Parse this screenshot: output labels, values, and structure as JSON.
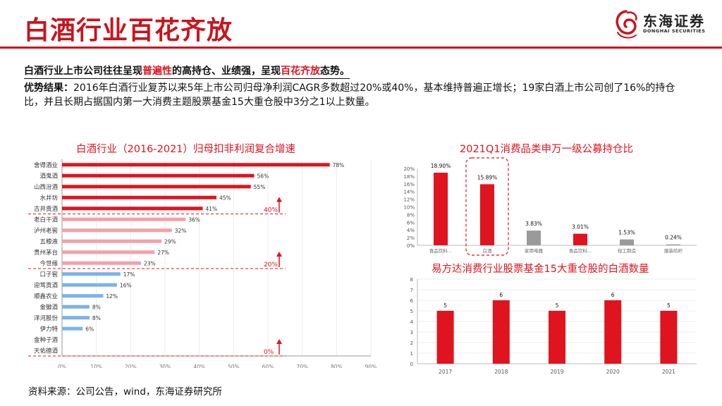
{
  "page": {
    "title": "白酒行业百花齐放",
    "brand_cn": "东海证券",
    "brand_en": "DONGHAI SECURITIES",
    "lead": {
      "p1": "白酒行业上市公司往往呈现",
      "h1": "普遍性",
      "p2": "的高持仓、业绩强，呈现",
      "h2": "百花齐放",
      "p3": "态势。"
    },
    "para_label": "优势结果：",
    "para_text": "2016年白酒行业复苏以来5年上市公司归母净利润CAGR多数超过20%或40%，基本维持普遍正增长；19家白酒上市公司创了16%的持仓比，并且长期占据国内第一大消费主题股票基金15大重仓股中3分之1以上数量。",
    "source": "资料来源：公司公告，wind，东海证券研究所"
  },
  "colors": {
    "red": "#e0141e",
    "pink": "#f4a0a8",
    "blue": "#7ab3ea",
    "gray": "#9a9a9a"
  },
  "chart_data": [
    {
      "type": "bar",
      "orientation": "horizontal",
      "title": "白酒行业（2016-2021）归母扣非利润复合增速",
      "categories": [
        "舍得酒业",
        "酒鬼酒",
        "山西汾酒",
        "水井坊",
        "古井贡酒",
        "老白干酒",
        "泸州老窖",
        "五粮液",
        "贵州茅台",
        "今世缘",
        "口子窖",
        "迎驾贡酒",
        "顺鑫农业",
        "金徽酒",
        "洋河股份",
        "伊力特",
        "金种子酒",
        "天佑德酒"
      ],
      "values": [
        78,
        56,
        55,
        45,
        41,
        36,
        32,
        29,
        27,
        23,
        17,
        16,
        12,
        8,
        8,
        6,
        0,
        0
      ],
      "data_labels": [
        "78%",
        "56%",
        "55%",
        "45%",
        "41%",
        "36%",
        "32%",
        "29%",
        "27%",
        "23%",
        "17%",
        "16%",
        "12%",
        "8%",
        "8%",
        "6%",
        "",
        ""
      ],
      "groups": [
        "red",
        "red",
        "red",
        "red",
        "red",
        "pink",
        "pink",
        "pink",
        "pink",
        "pink",
        "blue",
        "blue",
        "blue",
        "blue",
        "blue",
        "blue",
        "blue",
        "blue"
      ],
      "xlim": [
        0,
        90
      ],
      "x_ticks": [
        "0%",
        "10%",
        "20%",
        "30%",
        "40%",
        "50%",
        "60%",
        "70%",
        "80%",
        "90%"
      ],
      "thresholds": [
        "40%",
        "20%",
        "0%"
      ]
    },
    {
      "type": "bar",
      "title": "2021Q1消费品类申万一级公募持仓比",
      "categories": [
        "食品饮料…",
        "白酒",
        "家用电器",
        "食品饮料…",
        "轻工制造",
        "服装纺织"
      ],
      "values": [
        18.9,
        15.89,
        3.83,
        3.01,
        1.53,
        0.24
      ],
      "data_labels": [
        "18.90%",
        "15.89%",
        "3.83%",
        "3.01%",
        "1.53%",
        "0.24%"
      ],
      "bar_colors": [
        "red",
        "red",
        "gray",
        "red",
        "gray",
        "gray"
      ],
      "ylim": [
        0,
        20
      ],
      "y_ticks": [
        "0%",
        "2%",
        "4%",
        "6%",
        "8%",
        "10%",
        "12%",
        "14%",
        "16%",
        "18%",
        "20%"
      ],
      "highlight_category": "白酒"
    },
    {
      "type": "bar",
      "title": "易方达消费行业股票基金15大重仓股的白酒数量",
      "categories": [
        "2017",
        "2018",
        "2019",
        "2020",
        "2021"
      ],
      "values": [
        5,
        6,
        5,
        6,
        5
      ],
      "data_labels": [
        "5",
        "6",
        "5",
        "6",
        "5"
      ],
      "ylim": [
        0,
        8
      ],
      "y_ticks": [
        "0",
        "1",
        "2",
        "3",
        "4",
        "5",
        "6",
        "7",
        "8"
      ]
    }
  ]
}
